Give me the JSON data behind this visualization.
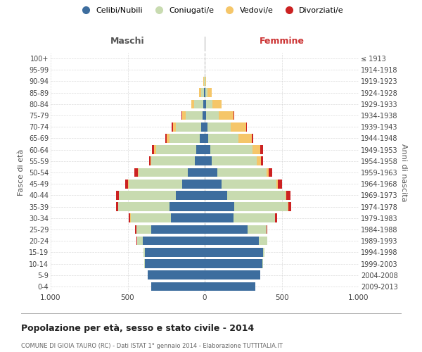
{
  "age_groups": [
    "0-4",
    "5-9",
    "10-14",
    "15-19",
    "20-24",
    "25-29",
    "30-34",
    "35-39",
    "40-44",
    "45-49",
    "50-54",
    "55-59",
    "60-64",
    "65-69",
    "70-74",
    "75-79",
    "80-84",
    "85-89",
    "90-94",
    "95-99",
    "100+"
  ],
  "birth_years": [
    "2009-2013",
    "2004-2008",
    "1999-2003",
    "1994-1998",
    "1989-1993",
    "1984-1988",
    "1979-1983",
    "1974-1978",
    "1969-1973",
    "1964-1968",
    "1959-1963",
    "1954-1958",
    "1949-1953",
    "1944-1948",
    "1939-1943",
    "1934-1938",
    "1929-1933",
    "1924-1928",
    "1919-1923",
    "1914-1918",
    "≤ 1913"
  ],
  "males": {
    "celibi": [
      345,
      370,
      390,
      390,
      400,
      345,
      220,
      230,
      185,
      145,
      110,
      65,
      55,
      30,
      25,
      15,
      10,
      5,
      2,
      1,
      0
    ],
    "coniugati": [
      0,
      0,
      2,
      5,
      40,
      100,
      260,
      330,
      370,
      350,
      320,
      280,
      260,
      200,
      160,
      110,
      60,
      20,
      3,
      0,
      0
    ],
    "vedovi": [
      0,
      0,
      0,
      0,
      0,
      0,
      2,
      2,
      2,
      3,
      5,
      5,
      12,
      15,
      20,
      20,
      15,
      10,
      2,
      0,
      0
    ],
    "divorziati": [
      0,
      0,
      0,
      0,
      3,
      5,
      10,
      15,
      20,
      20,
      20,
      10,
      15,
      10,
      10,
      5,
      0,
      0,
      0,
      0,
      0
    ]
  },
  "females": {
    "nubili": [
      330,
      360,
      375,
      380,
      350,
      280,
      185,
      190,
      145,
      110,
      80,
      45,
      35,
      22,
      18,
      10,
      8,
      4,
      2,
      1,
      0
    ],
    "coniugate": [
      0,
      0,
      2,
      8,
      55,
      120,
      270,
      350,
      380,
      355,
      320,
      295,
      275,
      195,
      150,
      80,
      40,
      15,
      2,
      0,
      0
    ],
    "vedove": [
      0,
      0,
      0,
      0,
      0,
      0,
      2,
      3,
      5,
      10,
      15,
      25,
      50,
      90,
      100,
      95,
      60,
      25,
      5,
      1,
      0
    ],
    "divorziate": [
      0,
      0,
      0,
      0,
      3,
      5,
      15,
      20,
      25,
      25,
      25,
      15,
      18,
      10,
      8,
      5,
      0,
      0,
      0,
      0,
      0
    ]
  },
  "colors": {
    "celibi": "#3d6d9e",
    "coniugati": "#c8dbb0",
    "vedovi": "#f5c669",
    "divorziati": "#cc2222"
  },
  "xlim": 1000,
  "title": "Popolazione per età, sesso e stato civile - 2014",
  "subtitle": "COMUNE DI GIOIA TAURO (RC) - Dati ISTAT 1° gennaio 2014 - Elaborazione TUTTITALIA.IT",
  "ylabel_left": "Fasce di età",
  "ylabel_right": "Anni di nascita",
  "xlabel_left": "Maschi",
  "xlabel_right": "Femmine",
  "bg_color": "#ffffff",
  "grid_color": "#cccccc"
}
